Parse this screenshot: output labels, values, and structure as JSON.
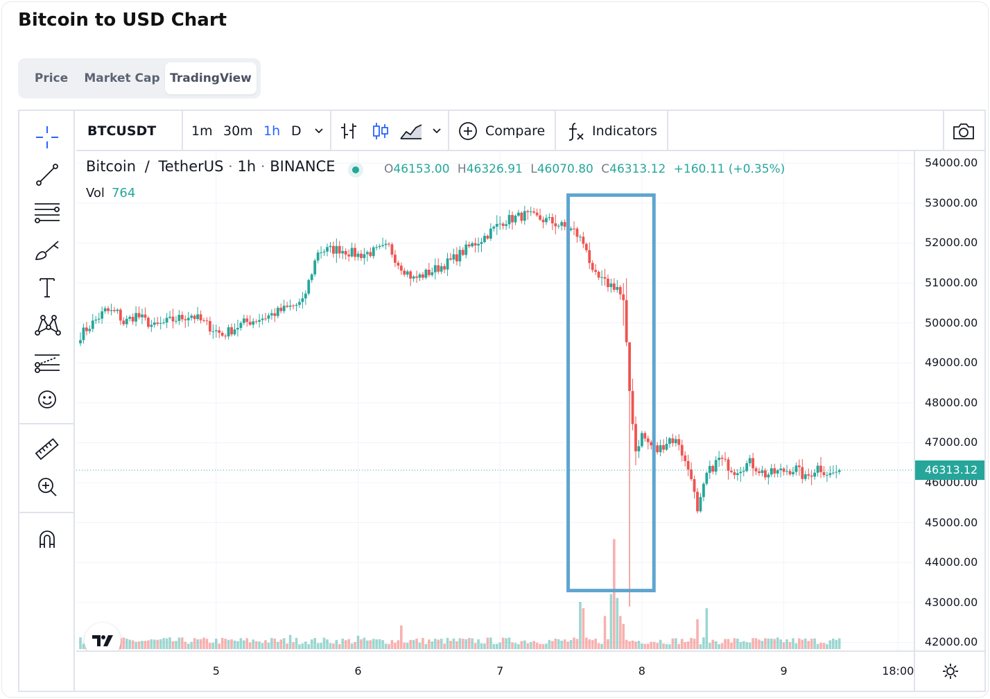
{
  "title": "Bitcoin to USD Chart",
  "tabs": [
    {
      "label": "Price",
      "active": false
    },
    {
      "label": "Market Cap",
      "active": false
    },
    {
      "label": "TradingView",
      "active": true
    }
  ],
  "toolbar": {
    "symbol": "BTCUSDT",
    "intervals": [
      "1m",
      "30m",
      "1h",
      "D"
    ],
    "active_interval": "1h",
    "compare_label": "Compare",
    "indicators_label": "Indicators"
  },
  "left_tools": [
    "crosshair-icon",
    "trend-line-icon",
    "fib-icon",
    "brush-icon",
    "text-icon",
    "pattern-icon",
    "forecast-icon",
    "emoji-icon",
    "ruler-icon",
    "zoom-in-icon",
    "magnet-icon"
  ],
  "legend": {
    "name": "Bitcoin",
    "sep1": "/",
    "quote": "TetherUS",
    "interval": "1h",
    "exchange": "BINANCE",
    "o_label": "O",
    "o": "46153.00",
    "h_label": "H",
    "h": "46326.91",
    "l_label": "L",
    "l": "46070.80",
    "c_label": "C",
    "c": "46313.12",
    "change": "+160.11 (+0.35%)",
    "vol_label": "Vol",
    "vol": "764"
  },
  "colors": {
    "up": "#26a69a",
    "down": "#ef5350",
    "highlight": "#5ea5d0",
    "active": "#2962ff"
  },
  "chart_data": {
    "type": "candlestick",
    "symbol": "BTCUSDT",
    "price_ticks": [
      "54000.00",
      "53000.00",
      "52000.00",
      "51000.00",
      "50000.00",
      "49000.00",
      "48000.00",
      "47000.00",
      "46000.00",
      "45000.00",
      "44000.00",
      "43000.00",
      "42000.00"
    ],
    "ylim": [
      41800,
      54300
    ],
    "x_ticks": [
      "5",
      "6",
      "7",
      "8",
      "9",
      "18:00"
    ],
    "last_price": "46313.12",
    "highlight_box": {
      "from_candle": 159,
      "to_candle": 185,
      "price_top": 53200,
      "price_bottom": 43300
    },
    "anchors": [
      [
        0,
        49700
      ],
      [
        8,
        50300
      ],
      [
        12,
        50250
      ],
      [
        14,
        50000
      ],
      [
        18,
        50200
      ],
      [
        24,
        49900
      ],
      [
        29,
        50050
      ],
      [
        36,
        50200
      ],
      [
        42,
        49900
      ],
      [
        46,
        49700
      ],
      [
        53,
        50000
      ],
      [
        60,
        50150
      ],
      [
        68,
        50400
      ],
      [
        72,
        50500
      ],
      [
        77,
        51800
      ],
      [
        84,
        51850
      ],
      [
        90,
        51700
      ],
      [
        96,
        51800
      ],
      [
        100,
        51900
      ],
      [
        103,
        51500
      ],
      [
        108,
        51100
      ],
      [
        114,
        51300
      ],
      [
        120,
        51550
      ],
      [
        126,
        51900
      ],
      [
        130,
        52100
      ],
      [
        137,
        52550
      ],
      [
        144,
        52700
      ],
      [
        152,
        52550
      ],
      [
        160,
        52300
      ],
      [
        164,
        51900
      ],
      [
        166,
        51200
      ],
      [
        170,
        51000
      ],
      [
        174,
        50900
      ],
      [
        176,
        50500
      ],
      [
        178,
        48300
      ],
      [
        180,
        46800
      ],
      [
        182,
        47200
      ],
      [
        184,
        47000
      ],
      [
        187,
        46800
      ],
      [
        191,
        47100
      ],
      [
        194,
        47000
      ],
      [
        196,
        46500
      ],
      [
        198,
        46200
      ],
      [
        200,
        45200
      ],
      [
        203,
        46200
      ],
      [
        207,
        46600
      ],
      [
        212,
        46300
      ],
      [
        217,
        46500
      ],
      [
        222,
        46200
      ],
      [
        228,
        46300
      ],
      [
        232,
        46350
      ],
      [
        235,
        46100
      ],
      [
        239,
        46400
      ],
      [
        243,
        46200
      ],
      [
        246,
        46313
      ]
    ],
    "volume_spikes": [
      [
        162,
        600
      ],
      [
        163,
        520
      ],
      [
        170,
        420
      ],
      [
        172,
        700
      ],
      [
        173,
        1400
      ],
      [
        174,
        650
      ],
      [
        175,
        420
      ],
      [
        176,
        320
      ],
      [
        200,
        380
      ],
      [
        203,
        520
      ],
      [
        104,
        300
      ],
      [
        68,
        180
      ],
      [
        90,
        170
      ]
    ],
    "volume_max": 1500,
    "n_candles": 247
  }
}
